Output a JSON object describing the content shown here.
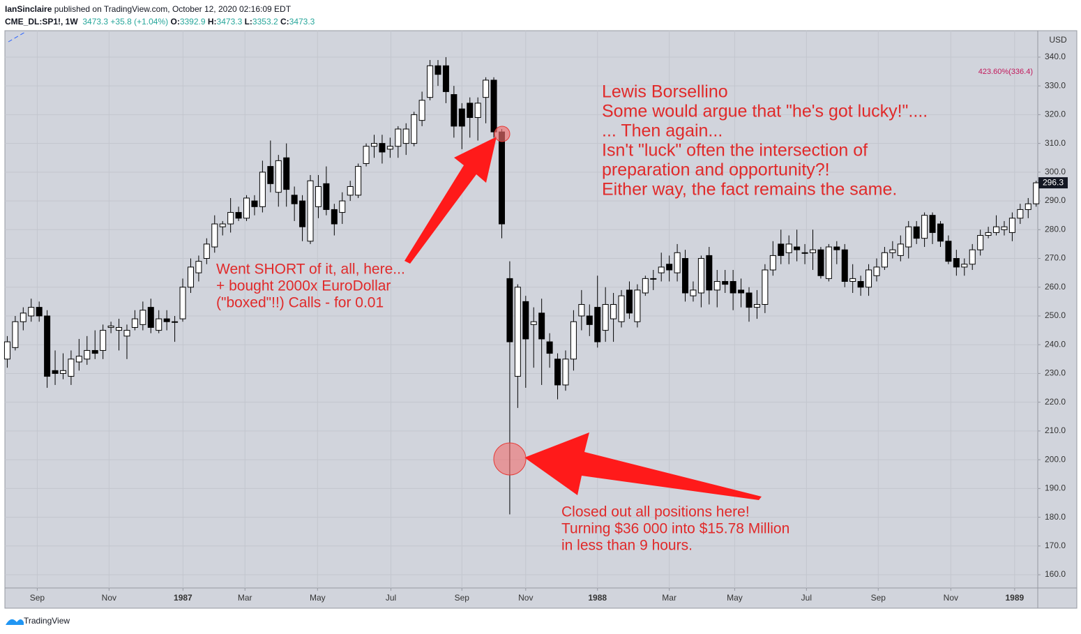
{
  "header": {
    "author": "IanSinclaire",
    "published": "published on TradingView.com, October 12, 2020 02:16:09 EDT",
    "symbol": "CME_DL:SP1!, 1W",
    "last": "3473.3",
    "change": "+35.8 (+1.04%)",
    "ohlc": [
      {
        "label": "O:",
        "value": "3392.9"
      },
      {
        "label": "H:",
        "value": "3473.3"
      },
      {
        "label": "L:",
        "value": "3353.2"
      },
      {
        "label": "C:",
        "value": "3473.3"
      }
    ]
  },
  "footer": {
    "brand": "TradingView"
  },
  "chart_data": {
    "type": "candlestick",
    "currency": "USD",
    "up_color": "#ffffff",
    "down_color": "#000000",
    "wick_color": "#000000",
    "grid": true,
    "xlim": [
      -0.3,
      129.2
    ],
    "xticks": [
      {
        "value": 3.76,
        "label": "Sep"
      },
      {
        "value": 12.76,
        "label": "Nov"
      },
      {
        "value": 22.03,
        "label": "1987"
      },
      {
        "value": 29.8,
        "label": "Mar"
      },
      {
        "value": 38.9,
        "label": "May"
      },
      {
        "value": 48.1,
        "label": "Jul"
      },
      {
        "value": 57.0,
        "label": "Sep"
      },
      {
        "value": 65.0,
        "label": "Nov"
      },
      {
        "value": 74.0,
        "label": "1988"
      },
      {
        "value": 83.0,
        "label": "Mar"
      },
      {
        "value": 91.2,
        "label": "May"
      },
      {
        "value": 100.2,
        "label": "Jul"
      },
      {
        "value": 109.2,
        "label": "Sep"
      },
      {
        "value": 118.3,
        "label": "Nov"
      },
      {
        "value": 126.3,
        "label": "1989"
      }
    ],
    "ylim": [
      155.4,
      349.2
    ],
    "yticks": [
      {
        "value": 160,
        "label": "160.0"
      },
      {
        "value": 170,
        "label": "170.0"
      },
      {
        "value": 180,
        "label": "180.0"
      },
      {
        "value": 190,
        "label": "190.0"
      },
      {
        "value": 200,
        "label": "200.0"
      },
      {
        "value": 210,
        "label": "210.0"
      },
      {
        "value": 220,
        "label": "220.0"
      },
      {
        "value": 230,
        "label": "230.0"
      },
      {
        "value": 240,
        "label": "240.0"
      },
      {
        "value": 250,
        "label": "250.0"
      },
      {
        "value": 260,
        "label": "260.0"
      },
      {
        "value": 270,
        "label": "270.0"
      },
      {
        "value": 280,
        "label": "280.0"
      },
      {
        "value": 290,
        "label": "290.0"
      },
      {
        "value": 300,
        "label": "300.0"
      },
      {
        "value": 310,
        "label": "310.0"
      },
      {
        "value": 320,
        "label": "320.0"
      },
      {
        "value": 330,
        "label": "330.0"
      },
      {
        "value": 340,
        "label": "340.0"
      }
    ],
    "open": [
      235,
      239,
      248,
      250,
      253,
      250,
      231,
      230,
      229,
      234,
      235,
      238,
      238,
      246,
      245,
      243,
      246,
      247,
      253,
      245,
      249,
      248,
      249,
      260,
      265,
      270,
      274,
      281,
      282,
      286,
      284,
      290,
      288,
      302,
      293,
      305,
      292,
      290,
      276,
      288,
      296,
      287,
      286,
      292,
      292,
      303,
      309,
      310,
      308,
      309,
      310,
      310,
      318,
      326,
      337,
      337,
      327,
      322,
      324,
      319,
      326,
      332,
      314,
      263,
      229,
      255,
      247,
      251,
      241,
      235,
      226,
      235,
      250,
      250,
      253,
      245,
      249,
      248,
      259,
      248,
      258,
      263,
      265,
      268,
      265,
      270,
      257,
      258,
      271,
      259,
      262,
      262,
      259,
      258,
      253,
      254,
      266,
      275,
      272,
      274,
      272,
      272,
      273,
      263,
      274,
      273,
      262,
      262,
      260,
      264,
      267,
      272,
      271,
      274,
      281,
      277,
      285,
      282,
      276,
      270,
      267,
      268,
      273,
      278,
      279,
      280,
      279,
      284,
      287,
      289
    ],
    "high": [
      243,
      250,
      253,
      256,
      255,
      252,
      238,
      237,
      238,
      242,
      243,
      245,
      247,
      248,
      249,
      247,
      252,
      255,
      256,
      252,
      252,
      250,
      263,
      270,
      271,
      277,
      285,
      283,
      291,
      288,
      292,
      292,
      304,
      311,
      306,
      310,
      295,
      292,
      299,
      299,
      302,
      289,
      293,
      297,
      303,
      310,
      313,
      313,
      312,
      316,
      317,
      321,
      328,
      339,
      339,
      340,
      330,
      324,
      326,
      326,
      333,
      333,
      315,
      269,
      261,
      257,
      253,
      256,
      244,
      237,
      238,
      252,
      259,
      254,
      264,
      260,
      258,
      259,
      262,
      261,
      264,
      266,
      272,
      271,
      275,
      273,
      262,
      271,
      274,
      266,
      266,
      266,
      263,
      260,
      259,
      268,
      276,
      280,
      278,
      280,
      275,
      280,
      274,
      275,
      276,
      275,
      268,
      264,
      268,
      270,
      274,
      276,
      278,
      283,
      283,
      286,
      286,
      283,
      278,
      273,
      270,
      275,
      280,
      281,
      285,
      283,
      286,
      289,
      291,
      297
    ],
    "low": [
      232,
      238,
      245,
      248,
      248,
      225,
      226,
      228,
      226,
      231,
      233,
      235,
      235,
      244,
      238,
      235,
      245,
      245,
      244,
      244,
      245,
      241,
      248,
      258,
      262,
      268,
      272,
      278,
      279,
      283,
      283,
      285,
      286,
      293,
      288,
      288,
      283,
      276,
      275,
      284,
      285,
      278,
      282,
      290,
      291,
      302,
      305,
      303,
      305,
      305,
      306,
      309,
      316,
      325,
      330,
      324,
      312,
      308,
      312,
      311,
      317,
      312,
      277,
      181,
      218,
      225,
      232,
      226,
      232,
      221,
      224,
      231,
      245,
      243,
      239,
      241,
      241,
      246,
      249,
      246,
      257,
      259,
      262,
      262,
      262,
      255,
      255,
      253,
      254,
      253,
      258,
      252,
      253,
      248,
      249,
      251,
      264,
      268,
      268,
      269,
      268,
      266,
      263,
      262,
      268,
      260,
      258,
      257,
      257,
      262,
      266,
      270,
      269,
      270,
      275,
      274,
      275,
      274,
      268,
      264,
      264,
      266,
      271,
      277,
      278,
      278,
      276,
      282,
      284,
      288
    ],
    "close": [
      241,
      248,
      251,
      253,
      250,
      229,
      230,
      231,
      235,
      236,
      238,
      237,
      245,
      246.5,
      246,
      245,
      249,
      252,
      246,
      249,
      248,
      248,
      260,
      267,
      269,
      275,
      282,
      282,
      286,
      284,
      291,
      288,
      300,
      296,
      304,
      294,
      289,
      281,
      297,
      295,
      287,
      282,
      290,
      295,
      302,
      309,
      310,
      307,
      309,
      315,
      315,
      320,
      325,
      337,
      334,
      328,
      316,
      316,
      319,
      324,
      332,
      314,
      282,
      241,
      260,
      242,
      248,
      242,
      237,
      226,
      235,
      248,
      254,
      247,
      241,
      254,
      254,
      257,
      251,
      259,
      263,
      263,
      267,
      266,
      272,
      258,
      259,
      270,
      259,
      262,
      261,
      258,
      258,
      253,
      254,
      266,
      271,
      271,
      275,
      273,
      272,
      273,
      264,
      274,
      273,
      262,
      263,
      260,
      266,
      267,
      272,
      273,
      275,
      281,
      277,
      285,
      279,
      276,
      269,
      267,
      268,
      273,
      278,
      279,
      281,
      281,
      284,
      287,
      289,
      296.3
    ],
    "annotations": {
      "fib_label": "423.60%(336.4)",
      "note_right": [
        "Lewis Borsellino",
        "Some would argue that \"he's got lucky!\"....",
        "... Then again...",
        "Isn't \"luck\" often the intersection of",
        "preparation and opportunity?!",
        "Either way, the fact remains the same."
      ],
      "note_short": [
        "Went SHORT of it, all, here...",
        "+ bought 2000x EuroDollar",
        "(\"boxed\"!!) Calls - for 0.01"
      ],
      "note_close": [
        "Closed out all positions here!",
        "Turning $36 000 into $15.78 Million",
        "in less than 9 hours."
      ]
    }
  }
}
